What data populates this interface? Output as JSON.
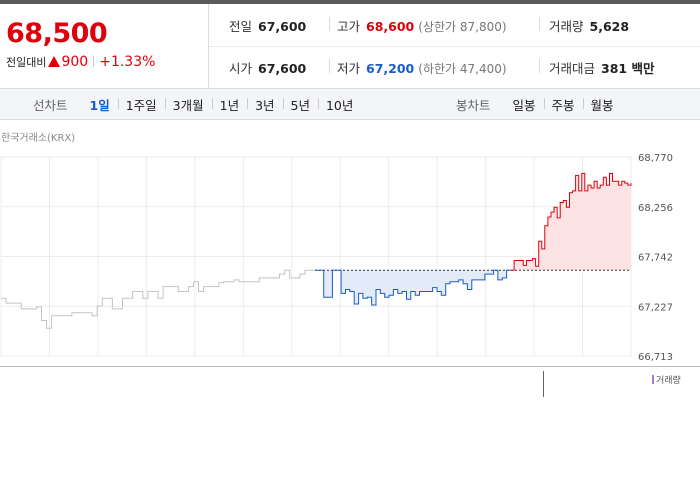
{
  "quote": {
    "price": "68,500",
    "change_label": "전일대비",
    "change_value": "900",
    "change_pct": "+1.33%",
    "prev_close": {
      "label": "전일",
      "value": "67,600"
    },
    "high": {
      "label": "고가",
      "value": "68,600",
      "sub": "(상한가 87,800)"
    },
    "volume": {
      "label": "거래량",
      "value": "5,628"
    },
    "open": {
      "label": "시가",
      "value": "67,600"
    },
    "low": {
      "label": "저가",
      "value": "67,200",
      "sub": "(하한가 47,400)"
    },
    "trade_value": {
      "label": "거래대금",
      "value": "381 백만"
    }
  },
  "tabs": {
    "line_label": "선차트",
    "line_periods": [
      "1일",
      "1주일",
      "3개월",
      "1년",
      "3년",
      "5년",
      "10년"
    ],
    "candle_label": "봉차트",
    "candle_periods": [
      "일봉",
      "주봉",
      "월봉"
    ],
    "active": "1일"
  },
  "chart": {
    "source_label": "한국거래소(KRX)",
    "volume_legend": "거래량",
    "colors": {
      "up": "#e0000b",
      "down": "#1a5cc9",
      "prev": "#c4c4c4",
      "up_fill": "#fde3e3",
      "down_fill": "#e3ebf8"
    }
  },
  "chart_data": {
    "type": "line",
    "y_ticks": [
      "68,770",
      "68,256",
      "67,742",
      "67,227",
      "66,713"
    ],
    "ylim": [
      66713,
      68770
    ],
    "baseline": 67600,
    "prev_series": [
      67310,
      67260,
      67260,
      67260,
      67200,
      67200,
      67200,
      67220,
      67080,
      67000,
      67130,
      67130,
      67130,
      67130,
      67160,
      67160,
      67160,
      67160,
      67130,
      67230,
      67310,
      67310,
      67200,
      67200,
      67310,
      67310,
      67380,
      67380,
      67310,
      67380,
      67380,
      67310,
      67430,
      67430,
      67430,
      67380,
      67380,
      67430,
      67480,
      67380,
      67430,
      67430,
      67430,
      67470,
      67480,
      67480,
      67500,
      67480,
      67480,
      67480,
      67480,
      67520,
      67520,
      67520,
      67520,
      67560,
      67600,
      67520,
      67520,
      67560,
      67600,
      67600,
      67600
    ],
    "down_series": [
      67600,
      67600,
      67320,
      67320,
      67600,
      67600,
      67360,
      67400,
      67380,
      67250,
      67360,
      67310,
      67320,
      67240,
      67400,
      67360,
      67320,
      67340,
      67400,
      67360,
      67380,
      67300,
      67380,
      67340,
      67380,
      67380,
      67380,
      67420,
      67380,
      67340,
      67460,
      67480,
      67480,
      67500,
      67460,
      67400,
      67500,
      67500,
      67500,
      67560,
      67560,
      67600,
      67500,
      67520,
      67600,
      67600
    ],
    "up_series": [
      67600,
      67700,
      67700,
      67700,
      67650,
      67700,
      67700,
      67720,
      67640,
      67900,
      67820,
      68060,
      68150,
      68200,
      68250,
      68140,
      68300,
      68320,
      68250,
      68400,
      68420,
      68580,
      68420,
      68600,
      68420,
      68480,
      68450,
      68520,
      68450,
      68480,
      68560,
      68480,
      68600,
      68520,
      68520,
      68480,
      68520,
      68500,
      68480,
      68500
    ]
  }
}
